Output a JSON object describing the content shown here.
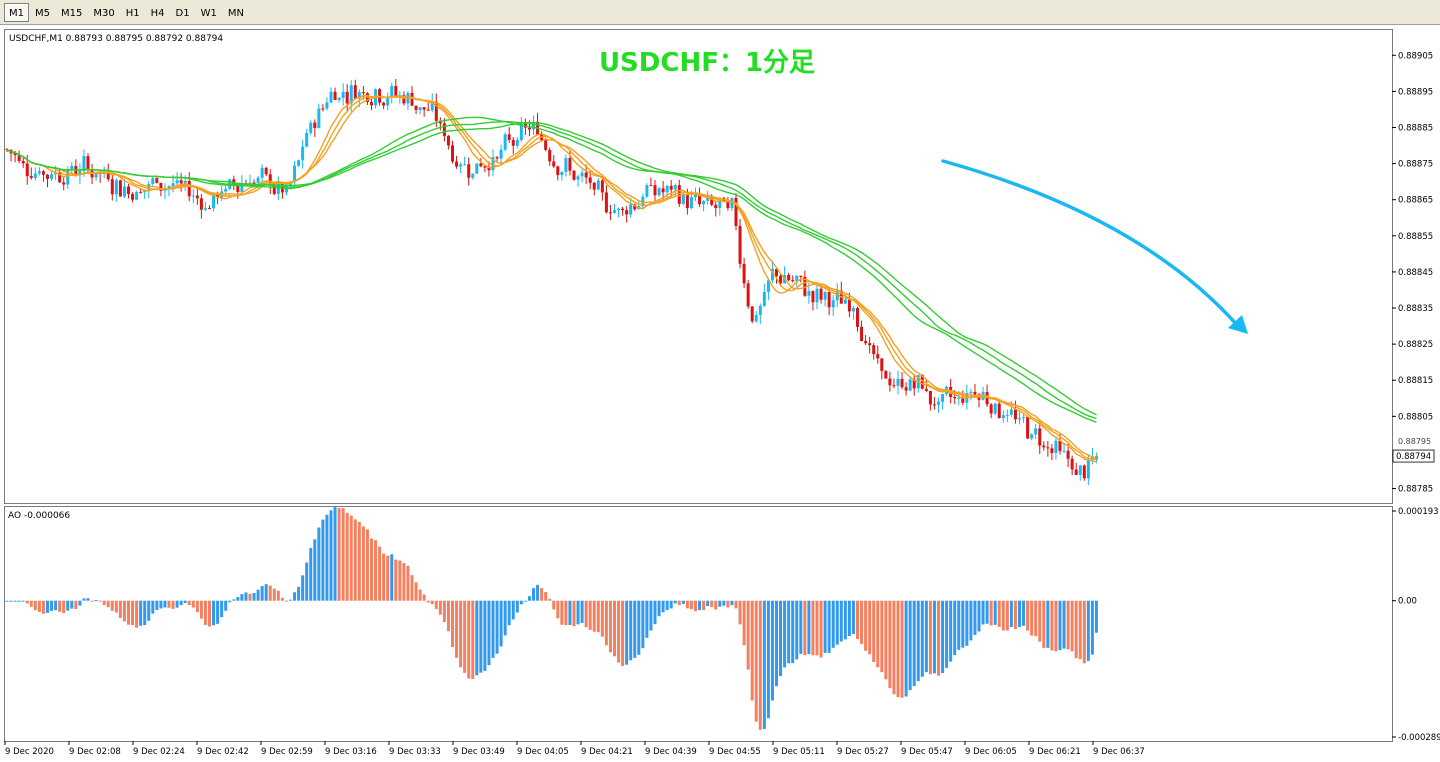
{
  "toolbar": {
    "timeframes": [
      {
        "label": "M1",
        "active": true
      },
      {
        "label": "M5",
        "active": false
      },
      {
        "label": "M15",
        "active": false
      },
      {
        "label": "M30",
        "active": false
      },
      {
        "label": "H1",
        "active": false
      },
      {
        "label": "H4",
        "active": false
      },
      {
        "label": "D1",
        "active": false
      },
      {
        "label": "W1",
        "active": false
      },
      {
        "label": "MN",
        "active": false
      }
    ]
  },
  "main_panel": {
    "info": "USDCHF,M1  0.88793 0.88795 0.88792 0.88794",
    "overlay_title": "USDCHF：1分足",
    "overlay_title_color": "#22dd22",
    "price_tag": "0.88794",
    "hidden_axis_label": "0.88795",
    "arrow_color": "#1ab8f0",
    "arrow_icon": "trend-down-arrow-icon"
  },
  "ao_panel": {
    "info": "AO -0.000066"
  },
  "colors": {
    "bull_candle": "#1ab8f0",
    "bear_candle": "#dd1111",
    "ma_fast": "#f4a020",
    "ma_slow": "#33cc33",
    "ao_up": "#3399ee",
    "ao_down": "#f58060"
  },
  "chart_data": [
    {
      "type": "candlestick",
      "symbol": "USDCHF",
      "timeframe": "M1",
      "y_ticks": [
        "0.88905",
        "0.88895",
        "0.88885",
        "0.88875",
        "0.88865",
        "0.88855",
        "0.88845",
        "0.88835",
        "0.88825",
        "0.88815",
        "0.88805",
        "0.88785"
      ],
      "ylim": [
        0.88781,
        0.88912
      ],
      "x_labels": [
        "9 Dec 2020",
        "9 Dec 02:08",
        "9 Dec 02:24",
        "9 Dec 02:42",
        "9 Dec 02:59",
        "9 Dec 03:16",
        "9 Dec 03:33",
        "9 Dec 03:49",
        "9 Dec 04:05",
        "9 Dec 04:21",
        "9 Dec 04:39",
        "9 Dec 04:55",
        "9 Dec 05:11",
        "9 Dec 05:27",
        "9 Dec 05:47",
        "9 Dec 06:05",
        "9 Dec 06:21",
        "9 Dec 06:37"
      ],
      "bar_count": 270,
      "anchors": [
        [
          0,
          0.88879
        ],
        [
          10,
          0.88872
        ],
        [
          20,
          0.88874
        ],
        [
          30,
          0.88868
        ],
        [
          40,
          0.8887
        ],
        [
          50,
          0.88864
        ],
        [
          60,
          0.88872
        ],
        [
          70,
          0.88866
        ],
        [
          75,
          0.88884
        ],
        [
          80,
          0.88895
        ],
        [
          90,
          0.88896
        ],
        [
          100,
          0.88893
        ],
        [
          106,
          0.88888
        ],
        [
          112,
          0.88874
        ],
        [
          120,
          0.88876
        ],
        [
          130,
          0.88885
        ],
        [
          140,
          0.88872
        ],
        [
          150,
          0.88862
        ],
        [
          160,
          0.88868
        ],
        [
          170,
          0.88864
        ],
        [
          180,
          0.88862
        ],
        [
          182,
          0.88845
        ],
        [
          185,
          0.8883
        ],
        [
          190,
          0.88845
        ],
        [
          200,
          0.88838
        ],
        [
          210,
          0.88835
        ],
        [
          215,
          0.88818
        ],
        [
          220,
          0.88812
        ],
        [
          225,
          0.88815
        ],
        [
          230,
          0.88808
        ],
        [
          240,
          0.88813
        ],
        [
          250,
          0.88803
        ],
        [
          260,
          0.88796
        ],
        [
          265,
          0.88788
        ],
        [
          270,
          0.88794
        ]
      ],
      "series": [
        {
          "name": "",
          "type": "sma",
          "period": 10,
          "color": "#f4a020"
        },
        {
          "name": "",
          "type": "sma",
          "period": 12,
          "color": "#f4a020"
        },
        {
          "name": "",
          "type": "sma",
          "period": 14,
          "color": "#f4a020"
        },
        {
          "name": "",
          "type": "sma",
          "period": 45,
          "color": "#33cc33"
        },
        {
          "name": "",
          "type": "sma",
          "period": 50,
          "color": "#33cc33"
        },
        {
          "name": "",
          "type": "sma",
          "period": 55,
          "color": "#33cc33"
        }
      ],
      "last": {
        "open": 0.88793,
        "high": 0.88795,
        "low": 0.88792,
        "close": 0.88794
      }
    },
    {
      "type": "bar",
      "name": "AO",
      "current_value": -6.6e-05,
      "y_ticks": [
        "0.000193",
        "0.00",
        "-0.000289"
      ],
      "ylim": [
        -0.000289,
        0.000193
      ],
      "positive_color": "#3399ee",
      "negative_color": "#f58060"
    }
  ]
}
